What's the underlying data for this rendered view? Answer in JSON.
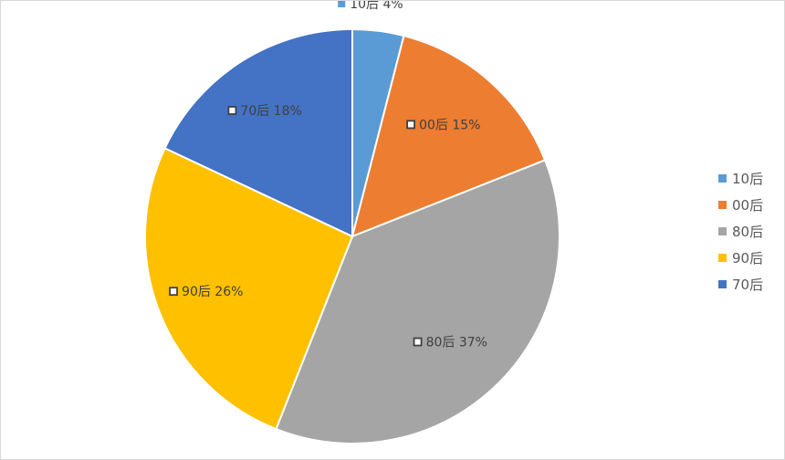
{
  "chart_data": {
    "type": "pie",
    "categories": [
      "10后",
      "00后",
      "80后",
      "90后",
      "70后"
    ],
    "values": [
      4,
      15,
      37,
      26,
      18
    ],
    "value_suffix": "%",
    "colors": [
      "#5b9bd5",
      "#ed7d31",
      "#a5a5a5",
      "#ffc000",
      "#4472c4"
    ],
    "legend_position": "right",
    "start_angle": "12 o'clock, clockwise"
  }
}
